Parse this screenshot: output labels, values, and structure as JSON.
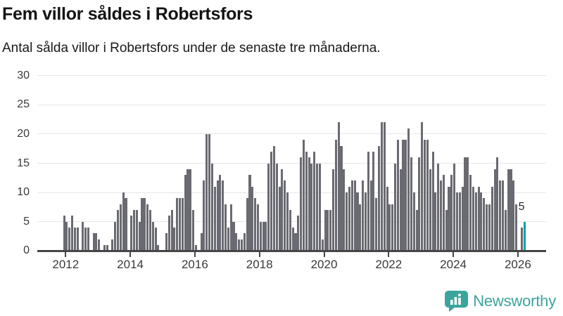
{
  "header": {
    "title": "Fem villor såldes i Robertsfors",
    "subtitle": "Antal sålda villor i Robertsfors under de senaste tre månaderna."
  },
  "footer": {
    "logo_text": "Newsworthy"
  },
  "annotation": {
    "last_value_label": "5"
  },
  "colors": {
    "bar_gray": "#6a6a72",
    "bar_teal": "#00a2a2",
    "logo_teal": "#3ba59d",
    "gridline": "#e6e6e6",
    "axis": "#454545",
    "tick_text": "#3a3a3a"
  },
  "chart_data": {
    "type": "bar",
    "title": "Fem villor såldes i Robertsfors",
    "subtitle": "Antal sålda villor i Robertsfors under de senaste tre månaderna.",
    "x_start": "2011-12",
    "x_end": "2026-03",
    "x_freq": "monthly",
    "values": [
      6,
      5,
      4,
      6,
      4,
      4,
      0,
      5,
      4,
      4,
      0,
      3,
      3,
      2,
      0,
      1,
      1,
      0,
      2,
      5,
      7,
      8,
      10,
      9,
      0,
      6,
      7,
      7,
      5,
      9,
      9,
      8,
      7,
      5,
      4,
      1,
      0,
      0,
      3,
      6,
      7,
      4,
      9,
      9,
      9,
      13,
      14,
      14,
      7,
      1,
      0,
      3,
      12,
      20,
      20,
      15,
      11,
      12,
      13,
      12,
      8,
      4,
      8,
      5,
      3,
      2,
      2,
      3,
      9,
      13,
      11,
      9,
      8,
      5,
      5,
      5,
      15,
      17,
      18,
      15,
      11,
      14,
      12,
      10,
      7,
      4,
      3,
      6,
      16,
      19,
      17,
      16,
      15,
      17,
      15,
      15,
      2,
      7,
      7,
      7,
      14,
      19,
      22,
      18,
      14,
      10,
      11,
      12,
      12,
      10,
      8,
      12,
      10,
      17,
      12,
      17,
      9,
      18,
      22,
      22,
      11,
      8,
      8,
      15,
      19,
      14,
      19,
      19,
      21,
      16,
      10,
      7,
      16,
      22,
      19,
      19,
      14,
      17,
      10,
      15,
      12,
      13,
      7,
      11,
      13,
      15,
      10,
      10,
      11,
      16,
      16,
      13,
      11,
      10,
      11,
      10,
      9,
      8,
      8,
      11,
      14,
      16,
      12,
      12,
      7,
      14,
      14,
      12,
      8,
      0,
      4,
      5
    ],
    "highlight_index": 171,
    "highlight_label": "5",
    "ylim": [
      0,
      30
    ],
    "yticks": [
      0,
      5,
      10,
      15,
      20,
      25,
      30
    ],
    "xticks": [
      2012,
      2014,
      2016,
      2018,
      2020,
      2022,
      2024,
      2026
    ],
    "grid": true,
    "legend": false
  }
}
